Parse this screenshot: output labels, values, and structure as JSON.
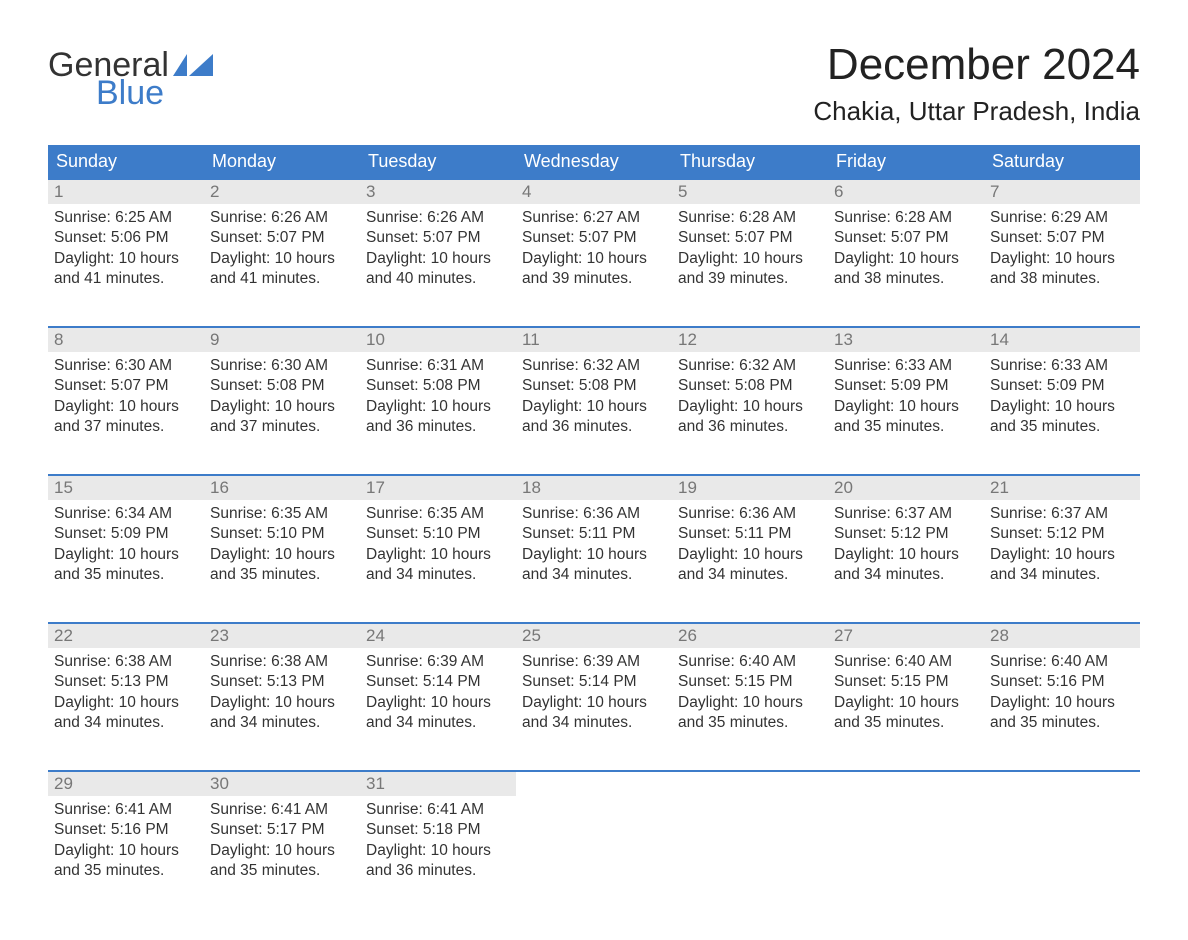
{
  "brand": {
    "name_part1": "General",
    "name_part2": "Blue",
    "flag_color": "#3d7cc9",
    "text_color_dark": "#333333",
    "text_color_blue": "#3d7cc9"
  },
  "title": "December 2024",
  "location": "Chakia, Uttar Pradesh, India",
  "colors": {
    "header_bg": "#3d7cc9",
    "header_text": "#ffffff",
    "daynum_bg": "#e9e9e9",
    "daynum_text": "#777777",
    "body_text": "#333333",
    "page_bg": "#ffffff",
    "week_border": "#3d7cc9"
  },
  "fonts": {
    "title_size_pt": 33,
    "location_size_pt": 20,
    "weekday_size_pt": 14,
    "daynum_size_pt": 13,
    "body_size_pt": 12
  },
  "weekdays": [
    "Sunday",
    "Monday",
    "Tuesday",
    "Wednesday",
    "Thursday",
    "Friday",
    "Saturday"
  ],
  "weeks": [
    [
      {
        "day": "1",
        "sunrise": "Sunrise: 6:25 AM",
        "sunset": "Sunset: 5:06 PM",
        "daylight1": "Daylight: 10 hours",
        "daylight2": "and 41 minutes."
      },
      {
        "day": "2",
        "sunrise": "Sunrise: 6:26 AM",
        "sunset": "Sunset: 5:07 PM",
        "daylight1": "Daylight: 10 hours",
        "daylight2": "and 41 minutes."
      },
      {
        "day": "3",
        "sunrise": "Sunrise: 6:26 AM",
        "sunset": "Sunset: 5:07 PM",
        "daylight1": "Daylight: 10 hours",
        "daylight2": "and 40 minutes."
      },
      {
        "day": "4",
        "sunrise": "Sunrise: 6:27 AM",
        "sunset": "Sunset: 5:07 PM",
        "daylight1": "Daylight: 10 hours",
        "daylight2": "and 39 minutes."
      },
      {
        "day": "5",
        "sunrise": "Sunrise: 6:28 AM",
        "sunset": "Sunset: 5:07 PM",
        "daylight1": "Daylight: 10 hours",
        "daylight2": "and 39 minutes."
      },
      {
        "day": "6",
        "sunrise": "Sunrise: 6:28 AM",
        "sunset": "Sunset: 5:07 PM",
        "daylight1": "Daylight: 10 hours",
        "daylight2": "and 38 minutes."
      },
      {
        "day": "7",
        "sunrise": "Sunrise: 6:29 AM",
        "sunset": "Sunset: 5:07 PM",
        "daylight1": "Daylight: 10 hours",
        "daylight2": "and 38 minutes."
      }
    ],
    [
      {
        "day": "8",
        "sunrise": "Sunrise: 6:30 AM",
        "sunset": "Sunset: 5:07 PM",
        "daylight1": "Daylight: 10 hours",
        "daylight2": "and 37 minutes."
      },
      {
        "day": "9",
        "sunrise": "Sunrise: 6:30 AM",
        "sunset": "Sunset: 5:08 PM",
        "daylight1": "Daylight: 10 hours",
        "daylight2": "and 37 minutes."
      },
      {
        "day": "10",
        "sunrise": "Sunrise: 6:31 AM",
        "sunset": "Sunset: 5:08 PM",
        "daylight1": "Daylight: 10 hours",
        "daylight2": "and 36 minutes."
      },
      {
        "day": "11",
        "sunrise": "Sunrise: 6:32 AM",
        "sunset": "Sunset: 5:08 PM",
        "daylight1": "Daylight: 10 hours",
        "daylight2": "and 36 minutes."
      },
      {
        "day": "12",
        "sunrise": "Sunrise: 6:32 AM",
        "sunset": "Sunset: 5:08 PM",
        "daylight1": "Daylight: 10 hours",
        "daylight2": "and 36 minutes."
      },
      {
        "day": "13",
        "sunrise": "Sunrise: 6:33 AM",
        "sunset": "Sunset: 5:09 PM",
        "daylight1": "Daylight: 10 hours",
        "daylight2": "and 35 minutes."
      },
      {
        "day": "14",
        "sunrise": "Sunrise: 6:33 AM",
        "sunset": "Sunset: 5:09 PM",
        "daylight1": "Daylight: 10 hours",
        "daylight2": "and 35 minutes."
      }
    ],
    [
      {
        "day": "15",
        "sunrise": "Sunrise: 6:34 AM",
        "sunset": "Sunset: 5:09 PM",
        "daylight1": "Daylight: 10 hours",
        "daylight2": "and 35 minutes."
      },
      {
        "day": "16",
        "sunrise": "Sunrise: 6:35 AM",
        "sunset": "Sunset: 5:10 PM",
        "daylight1": "Daylight: 10 hours",
        "daylight2": "and 35 minutes."
      },
      {
        "day": "17",
        "sunrise": "Sunrise: 6:35 AM",
        "sunset": "Sunset: 5:10 PM",
        "daylight1": "Daylight: 10 hours",
        "daylight2": "and 34 minutes."
      },
      {
        "day": "18",
        "sunrise": "Sunrise: 6:36 AM",
        "sunset": "Sunset: 5:11 PM",
        "daylight1": "Daylight: 10 hours",
        "daylight2": "and 34 minutes."
      },
      {
        "day": "19",
        "sunrise": "Sunrise: 6:36 AM",
        "sunset": "Sunset: 5:11 PM",
        "daylight1": "Daylight: 10 hours",
        "daylight2": "and 34 minutes."
      },
      {
        "day": "20",
        "sunrise": "Sunrise: 6:37 AM",
        "sunset": "Sunset: 5:12 PM",
        "daylight1": "Daylight: 10 hours",
        "daylight2": "and 34 minutes."
      },
      {
        "day": "21",
        "sunrise": "Sunrise: 6:37 AM",
        "sunset": "Sunset: 5:12 PM",
        "daylight1": "Daylight: 10 hours",
        "daylight2": "and 34 minutes."
      }
    ],
    [
      {
        "day": "22",
        "sunrise": "Sunrise: 6:38 AM",
        "sunset": "Sunset: 5:13 PM",
        "daylight1": "Daylight: 10 hours",
        "daylight2": "and 34 minutes."
      },
      {
        "day": "23",
        "sunrise": "Sunrise: 6:38 AM",
        "sunset": "Sunset: 5:13 PM",
        "daylight1": "Daylight: 10 hours",
        "daylight2": "and 34 minutes."
      },
      {
        "day": "24",
        "sunrise": "Sunrise: 6:39 AM",
        "sunset": "Sunset: 5:14 PM",
        "daylight1": "Daylight: 10 hours",
        "daylight2": "and 34 minutes."
      },
      {
        "day": "25",
        "sunrise": "Sunrise: 6:39 AM",
        "sunset": "Sunset: 5:14 PM",
        "daylight1": "Daylight: 10 hours",
        "daylight2": "and 34 minutes."
      },
      {
        "day": "26",
        "sunrise": "Sunrise: 6:40 AM",
        "sunset": "Sunset: 5:15 PM",
        "daylight1": "Daylight: 10 hours",
        "daylight2": "and 35 minutes."
      },
      {
        "day": "27",
        "sunrise": "Sunrise: 6:40 AM",
        "sunset": "Sunset: 5:15 PM",
        "daylight1": "Daylight: 10 hours",
        "daylight2": "and 35 minutes."
      },
      {
        "day": "28",
        "sunrise": "Sunrise: 6:40 AM",
        "sunset": "Sunset: 5:16 PM",
        "daylight1": "Daylight: 10 hours",
        "daylight2": "and 35 minutes."
      }
    ],
    [
      {
        "day": "29",
        "sunrise": "Sunrise: 6:41 AM",
        "sunset": "Sunset: 5:16 PM",
        "daylight1": "Daylight: 10 hours",
        "daylight2": "and 35 minutes."
      },
      {
        "day": "30",
        "sunrise": "Sunrise: 6:41 AM",
        "sunset": "Sunset: 5:17 PM",
        "daylight1": "Daylight: 10 hours",
        "daylight2": "and 35 minutes."
      },
      {
        "day": "31",
        "sunrise": "Sunrise: 6:41 AM",
        "sunset": "Sunset: 5:18 PM",
        "daylight1": "Daylight: 10 hours",
        "daylight2": "and 36 minutes."
      },
      null,
      null,
      null,
      null
    ]
  ]
}
